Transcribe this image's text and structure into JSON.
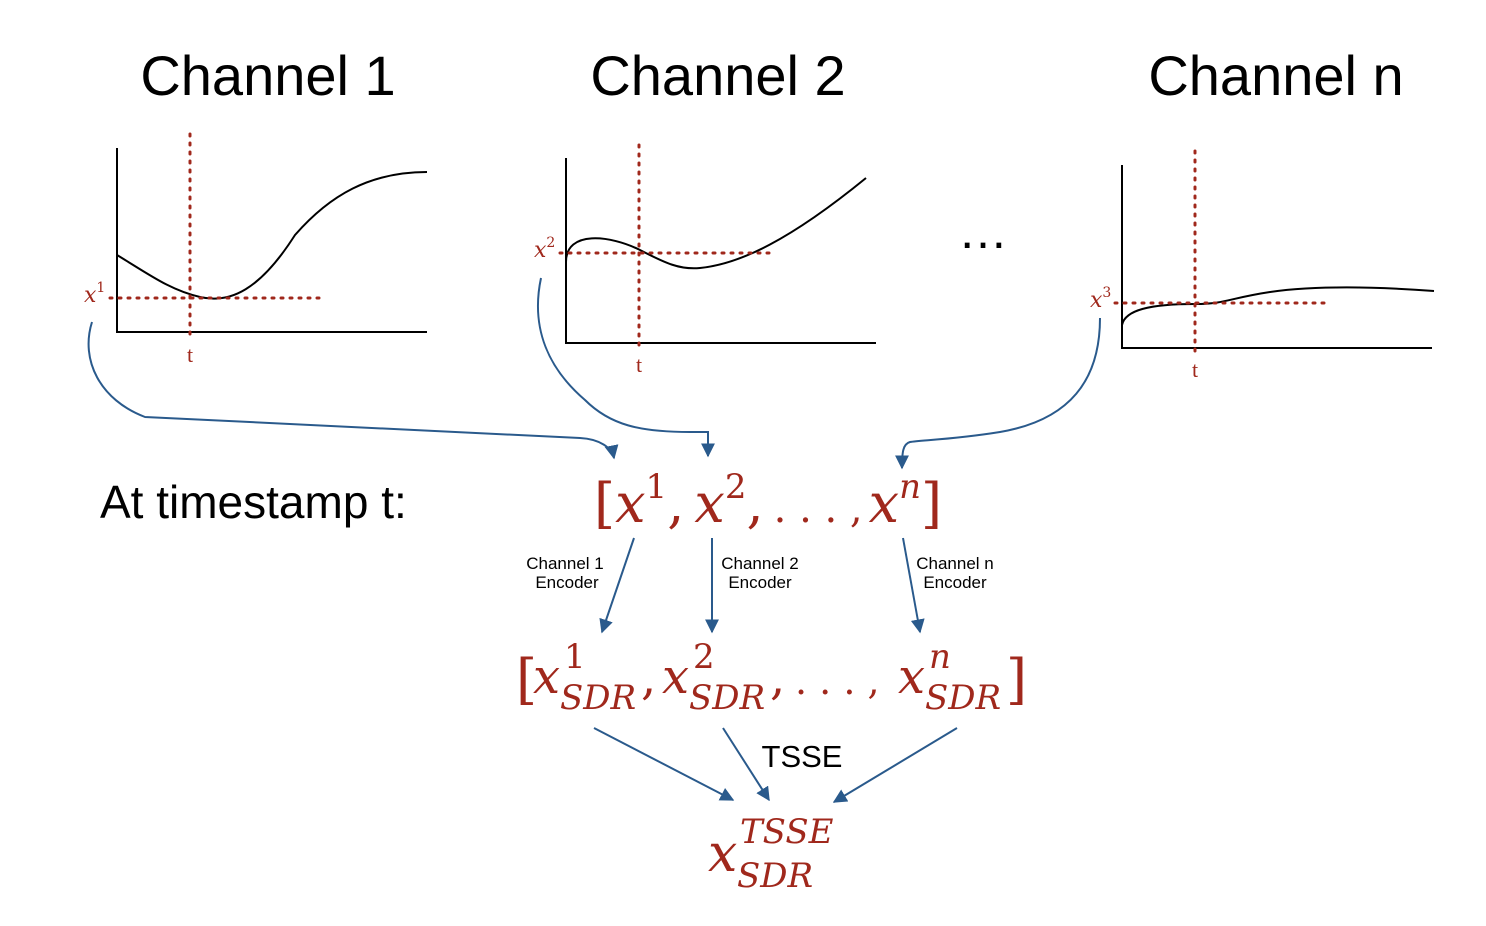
{
  "channels": [
    {
      "title": "Channel 1",
      "value_label": "x",
      "value_sup": "1",
      "time_label": "t"
    },
    {
      "title": "Channel 2",
      "value_label": "x",
      "value_sup": "2",
      "time_label": "t"
    },
    {
      "title": "Channel n",
      "value_label": "x",
      "value_sup": "3",
      "time_label": "t"
    }
  ],
  "ellipsis": "…",
  "timestamp_label": "At timestamp t:",
  "vector": {
    "open": "[",
    "base": "x",
    "sups": [
      "1",
      "2",
      "n"
    ],
    "separator": ",",
    "dots": ". . . ,",
    "close": "]"
  },
  "encoders": [
    {
      "line1": "Channel 1",
      "line2": "Encoder"
    },
    {
      "line1": "Channel 2",
      "line2": "Encoder"
    },
    {
      "line1": "Channel n",
      "line2": "Encoder"
    }
  ],
  "sdr_vector": {
    "open": "[",
    "base": "x",
    "sups": [
      "1",
      "2",
      "n"
    ],
    "sub": "SDR",
    "separator": ",",
    "dots": ". . . ,",
    "close": "]"
  },
  "tsse_label": "TSSE",
  "result": {
    "base": "x",
    "sup": "TSSE",
    "sub": "SDR"
  },
  "colors": {
    "accent": "#a0281c",
    "arrow": "#2a5a8c"
  }
}
